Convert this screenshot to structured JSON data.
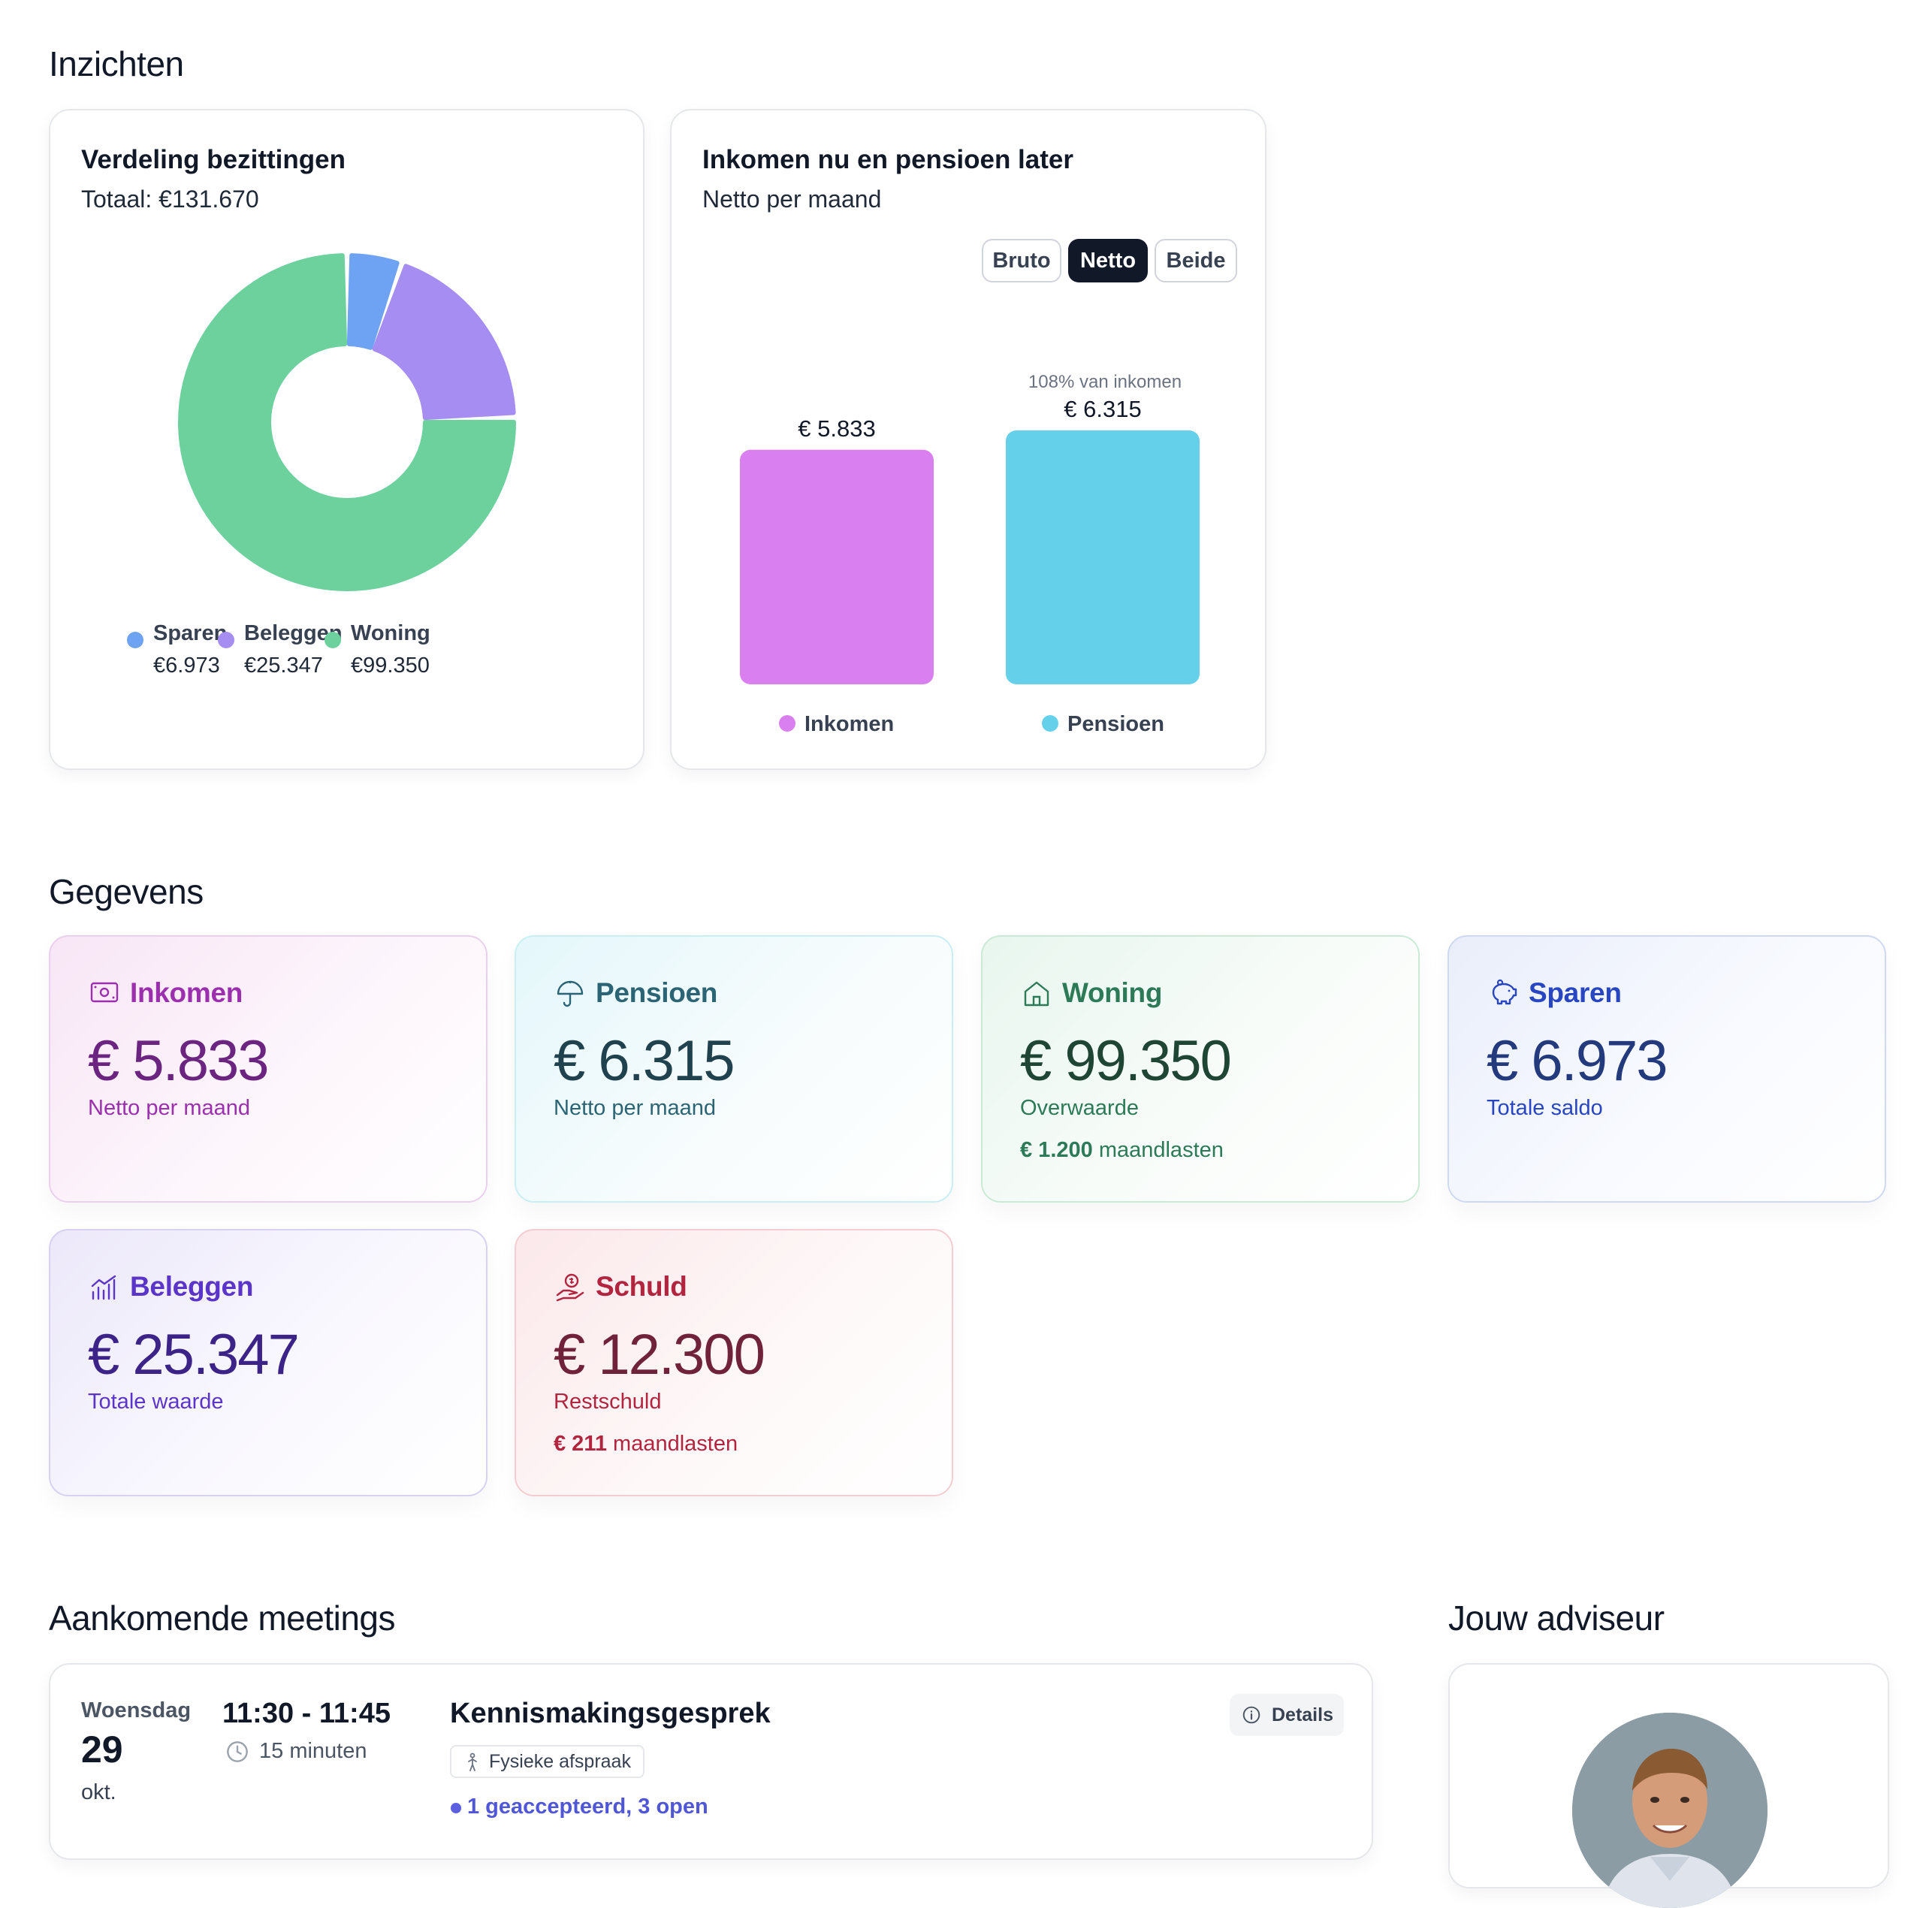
{
  "sections": {
    "insights": "Inzichten",
    "data": "Gegevens",
    "meetings": "Aankomende meetings",
    "advisor": "Jouw adviseur"
  },
  "assets_card": {
    "title": "Verdeling bezittingen",
    "total": "Totaal: €131.670"
  },
  "income_card": {
    "title": "Inkomen nu en pensioen later",
    "subtitle": "Netto per maand",
    "toggles": [
      "Bruto",
      "Netto",
      "Beide"
    ],
    "active_toggle": "Netto",
    "pension_note": "108% van inkomen"
  },
  "chart_data": [
    {
      "type": "pie",
      "title": "Verdeling bezittingen",
      "labels": [
        "Sparen",
        "Beleggen",
        "Woning"
      ],
      "values": [
        6973,
        25347,
        99350
      ],
      "value_labels": [
        "€6.973",
        "€25.347",
        "€99.350"
      ],
      "colors": [
        "#6ea2f2",
        "#a58df2",
        "#6dd19e"
      ],
      "legend": "bottom"
    },
    {
      "type": "bar",
      "title": "Inkomen nu en pensioen later",
      "categories": [
        "Inkomen",
        "Pensioen"
      ],
      "values": [
        5833,
        6315
      ],
      "value_labels": [
        "€ 5.833",
        "€ 6.315"
      ],
      "colors": [
        "#d97ff0",
        "#65d0ea"
      ],
      "legend": "bottom"
    }
  ],
  "stats": [
    {
      "key": "inkomen",
      "title": "Inkomen",
      "value": "€ 5.833",
      "subtitle": "Netto per maand",
      "extra_bold": "",
      "extra": "",
      "icon": "banknote-icon",
      "color": "#9b2fae",
      "value_color": "#6b2480"
    },
    {
      "key": "pensioen",
      "title": "Pensioen",
      "value": "€ 6.315",
      "subtitle": "Netto per maand",
      "extra_bold": "",
      "extra": "",
      "icon": "umbrella-icon",
      "color": "#2b6474",
      "value_color": "#20424e"
    },
    {
      "key": "woning",
      "title": "Woning",
      "value": "€ 99.350",
      "subtitle": "Overwaarde",
      "extra_bold": "€ 1.200",
      "extra": " maandlasten",
      "icon": "home-icon",
      "color": "#2c7a57",
      "value_color": "#1f4535"
    },
    {
      "key": "sparen",
      "title": "Sparen",
      "value": "€ 6.973",
      "subtitle": "Totale saldo",
      "extra_bold": "",
      "extra": "",
      "icon": "piggy-bank-icon",
      "color": "#2846c2",
      "value_color": "#233a7d"
    },
    {
      "key": "beleggen",
      "title": "Beleggen",
      "value": "€ 25.347",
      "subtitle": "Totale waarde",
      "extra_bold": "",
      "extra": "",
      "icon": "chart-icon",
      "color": "#5b35c9",
      "value_color": "#3b2388"
    },
    {
      "key": "schuld",
      "title": "Schuld",
      "value": "€ 12.300",
      "subtitle": "Restschuld",
      "extra_bold": "€ 211",
      "extra": " maandlasten",
      "icon": "hand-coin-icon",
      "color": "#b3243f",
      "value_color": "#70223a"
    }
  ],
  "meeting": {
    "weekday": "Woensdag",
    "day": "29",
    "month": "okt.",
    "time": "11:30 - 11:45",
    "duration": "15 minuten",
    "title": "Kennismakingsgesprek",
    "type": "Fysieke afspraak",
    "status": "1 geaccepteerd, 3 open",
    "details": "Details"
  }
}
